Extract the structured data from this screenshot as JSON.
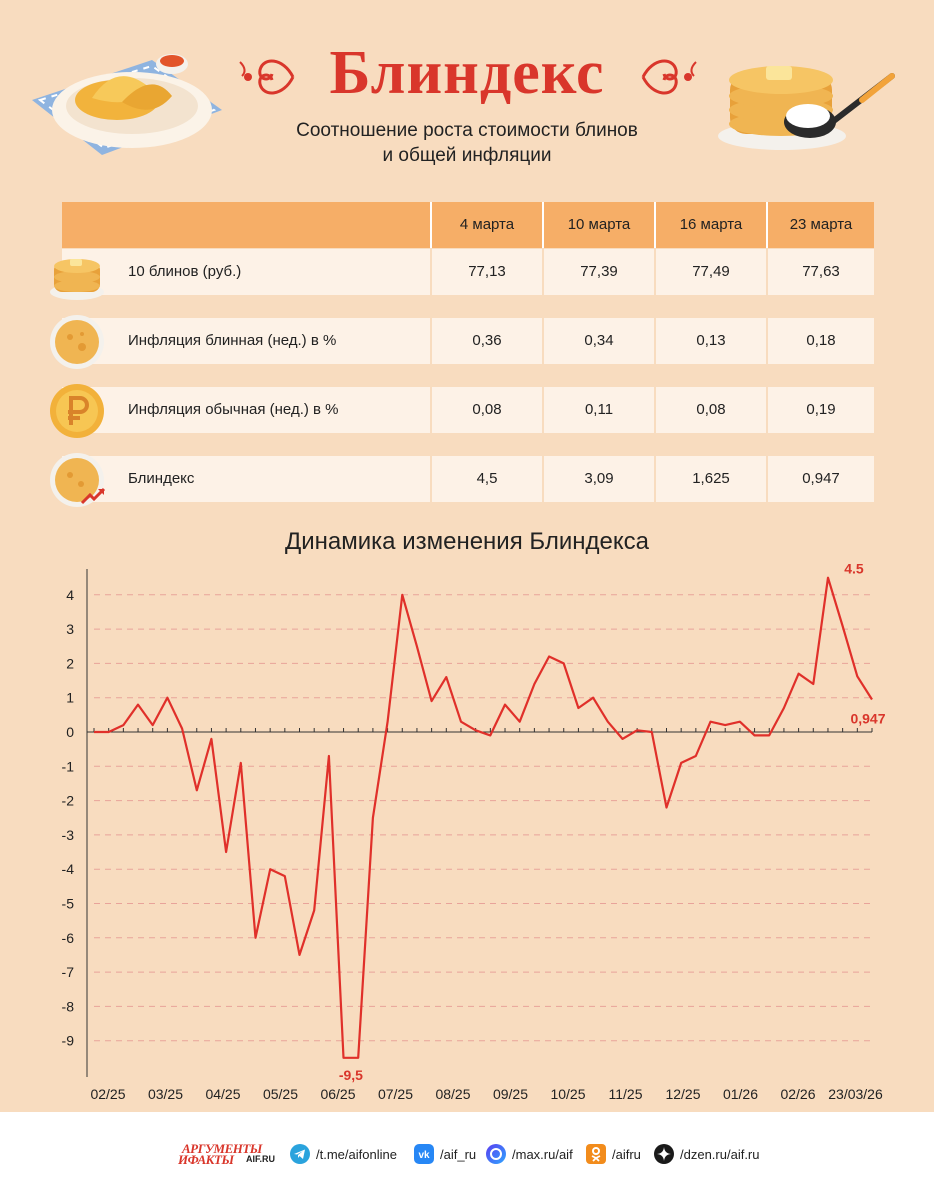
{
  "header": {
    "title": "Блиндекс",
    "subtitle_line1": "Соотношение роста стоимости блинов",
    "subtitle_line2": "и общей инфляции"
  },
  "table": {
    "columns": [
      "4 марта",
      "10 марта",
      "16 марта",
      "23 марта"
    ],
    "rows": [
      {
        "label": "10 блинов (руб.)",
        "icon": "pancake-stack-icon",
        "values": [
          "77,13",
          "77,39",
          "77,49",
          "77,63"
        ]
      },
      {
        "label": "Инфляция блинная (нед.) в %",
        "icon": "pancake-icon",
        "values": [
          "0,36",
          "0,34",
          "0,13",
          "0,18"
        ]
      },
      {
        "label": "Инфляция обычная (нед.) в %",
        "icon": "ruble-coin-icon",
        "values": [
          "0,08",
          "0,11",
          "0,08",
          "0,19"
        ]
      },
      {
        "label": "Блиндекс",
        "icon": "pancake-growth-icon",
        "values": [
          "4,5",
          "3,09",
          "1,625",
          "0,947"
        ]
      }
    ]
  },
  "chart_data": {
    "type": "line",
    "title": "Динамика изменения Блиндекса",
    "ylim": [
      -10,
      4.6
    ],
    "y_ticks": [
      "4",
      "3",
      "2",
      "1",
      "0",
      "-1",
      "-2",
      "-3",
      "-4",
      "-5",
      "-6",
      "-7",
      "-8",
      "-9"
    ],
    "x_tick_labels": [
      "02/25",
      "03/25",
      "04/25",
      "05/25",
      "06/25",
      "07/25",
      "08/25",
      "09/25",
      "10/25",
      "11/25",
      "12/25",
      "01/26",
      "02/26",
      "23/03/26"
    ],
    "grid": "dashed horizontal",
    "series": [
      {
        "color": "#e0302a",
        "values": [
          0,
          0,
          0.2,
          0.8,
          0.2,
          1.0,
          0.1,
          -1.7,
          -0.2,
          -3.5,
          -0.9,
          -6.0,
          -4.0,
          -4.2,
          -6.5,
          -5.2,
          -0.7,
          -9.5,
          -9.5,
          -2.5,
          0.3,
          4.0,
          2.5,
          0.9,
          1.6,
          0.3,
          0.05,
          -0.1,
          0.8,
          0.3,
          1.4,
          2.2,
          2.0,
          0.7,
          1.0,
          0.3,
          -0.2,
          0.05,
          0.0,
          -2.2,
          -0.9,
          -0.7,
          0.3,
          0.2,
          0.3,
          -0.1,
          -0.1,
          0.7,
          1.7,
          1.4,
          4.5,
          3.09,
          1.625,
          0.947
        ]
      }
    ],
    "annotations": [
      {
        "text": "4.5",
        "at": "peak"
      },
      {
        "text": "-9,5",
        "at": "min"
      },
      {
        "text": "0,947",
        "at": "last"
      }
    ]
  },
  "colors": {
    "background": "#f8dcbf",
    "accent_red": "#d9362b",
    "header_orange": "#f6ae67",
    "line": "#e0302a"
  },
  "footer": {
    "logo_line1": "АРГУМЕНТЫ",
    "logo_line2": "ИФАКТЫ",
    "logo_domain": "AIF.RU",
    "links": [
      {
        "icon": "telegram-icon",
        "text": "/t.me/aifonline"
      },
      {
        "icon": "vk-icon",
        "text": "/aif_ru"
      },
      {
        "icon": "max-icon",
        "text": "/max.ru/aif"
      },
      {
        "icon": "ok-icon",
        "text": "/aifru"
      },
      {
        "icon": "dzen-icon",
        "text": "/dzen.ru/aif.ru"
      }
    ]
  }
}
